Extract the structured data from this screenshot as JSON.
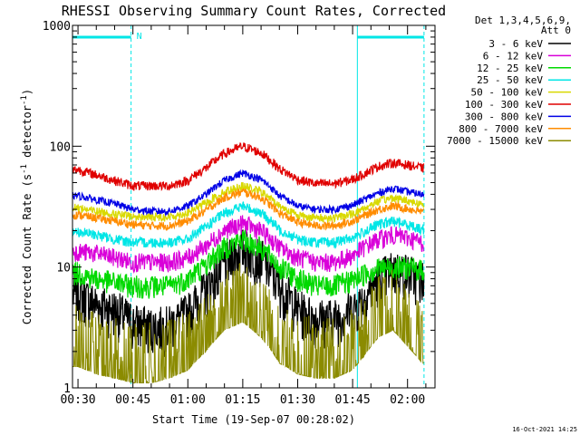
{
  "chart_data": {
    "type": "line",
    "title": "RHESSI Observing Summary Count Rates, Corrected",
    "xlabel": "Start Time (19-Sep-07 00:28:02)",
    "ylabel_prefix": "Corrected Count Rate (s",
    "ylabel_sup1": "-1",
    "ylabel_mid": " detector",
    "ylabel_sup2": "-1",
    "ylabel_suffix": ")",
    "yscale": "log",
    "ylim": [
      1,
      1000
    ],
    "xlim": [
      28.5,
      127.5
    ],
    "x_unit": "minutes after 00:00 UT, 19-Sep-07",
    "x_ticks": [
      {
        "value": 30,
        "label": "00:30"
      },
      {
        "value": 45,
        "label": "00:45"
      },
      {
        "value": 60,
        "label": "01:00"
      },
      {
        "value": 75,
        "label": "01:15"
      },
      {
        "value": 90,
        "label": "01:30"
      },
      {
        "value": 105,
        "label": "01:45"
      },
      {
        "value": 120,
        "label": "02:00"
      }
    ],
    "y_ticks": [
      {
        "value": 1,
        "label": "1"
      },
      {
        "value": 10,
        "label": "10"
      },
      {
        "value": 100,
        "label": "100"
      },
      {
        "value": 1000,
        "label": "1000"
      }
    ],
    "legend_header": [
      "Det 1,3,4,5,6,9,",
      "Att 0"
    ],
    "legend_position": "right",
    "night_marker_label": "N",
    "night_intervals": [
      [
        28.5,
        44.5
      ],
      [
        106.3,
        124.5
      ]
    ],
    "series": [
      {
        "name": "3 - 6 keV",
        "color": "#000000",
        "x": [
          30,
          35,
          40,
          45,
          50,
          55,
          60,
          65,
          70,
          75,
          80,
          85,
          90,
          95,
          100,
          105,
          108,
          112,
          116,
          120,
          124
        ],
        "values": [
          6.0,
          5.0,
          4.5,
          3.5,
          3.2,
          3.3,
          4.2,
          6.5,
          10.5,
          14.5,
          12.0,
          7.0,
          4.5,
          3.8,
          3.8,
          4.5,
          5.5,
          8.0,
          9.5,
          9.0,
          8.0
        ]
      },
      {
        "name": "6 - 12 keV",
        "color": "#d900d9",
        "x": [
          30,
          35,
          40,
          45,
          50,
          55,
          60,
          65,
          70,
          75,
          80,
          85,
          90,
          95,
          100,
          105,
          108,
          112,
          116,
          120,
          124
        ],
        "values": [
          13.5,
          13.0,
          12.0,
          11.0,
          11.0,
          11.0,
          12.0,
          15.0,
          20.0,
          23.0,
          20.0,
          14.5,
          12.0,
          11.0,
          11.0,
          12.5,
          14.5,
          17.0,
          18.5,
          17.5,
          16.0
        ]
      },
      {
        "name": "12 - 25 keV",
        "color": "#00d900",
        "x": [
          30,
          35,
          40,
          45,
          50,
          55,
          60,
          65,
          70,
          75,
          80,
          85,
          90,
          95,
          100,
          105,
          108,
          112,
          116,
          120,
          124
        ],
        "values": [
          9.0,
          8.0,
          7.5,
          7.0,
          7.0,
          7.0,
          8.0,
          10.5,
          14.5,
          17.0,
          14.5,
          10.0,
          8.0,
          7.0,
          7.0,
          7.8,
          8.8,
          9.8,
          10.0,
          10.0,
          9.5
        ]
      },
      {
        "name": "25 - 50 keV",
        "color": "#00e6e6",
        "x": [
          30,
          35,
          40,
          45,
          50,
          55,
          60,
          65,
          70,
          75,
          80,
          85,
          90,
          95,
          100,
          105,
          108,
          112,
          116,
          120,
          124
        ],
        "values": [
          19.5,
          18.5,
          17.0,
          16.0,
          16.0,
          16.0,
          17.0,
          21.5,
          28.0,
          32.0,
          28.0,
          20.5,
          17.0,
          16.0,
          16.0,
          17.5,
          19.5,
          22.5,
          24.0,
          22.5,
          20.5
        ]
      },
      {
        "name": "50 - 100 keV",
        "color": "#d9d900",
        "x": [
          30,
          35,
          40,
          45,
          50,
          55,
          60,
          65,
          70,
          75,
          80,
          85,
          90,
          95,
          100,
          105,
          108,
          112,
          116,
          120,
          124
        ],
        "values": [
          31.0,
          29.0,
          27.5,
          26.0,
          26.0,
          26.0,
          28.0,
          34.0,
          42.0,
          47.0,
          42.0,
          32.0,
          27.0,
          25.5,
          25.5,
          27.5,
          30.5,
          35.0,
          37.5,
          35.5,
          33.0
        ]
      },
      {
        "name": "100 - 300 keV",
        "color": "#e00000",
        "x": [
          30,
          35,
          40,
          45,
          50,
          55,
          60,
          65,
          70,
          75,
          80,
          85,
          90,
          95,
          100,
          105,
          108,
          112,
          116,
          120,
          124
        ],
        "values": [
          64.0,
          58.0,
          52.0,
          47.0,
          47.0,
          47.0,
          52.0,
          66.0,
          87.0,
          100.0,
          88.0,
          65.0,
          53.0,
          49.0,
          49.0,
          53.0,
          59.0,
          68.0,
          73.0,
          70.0,
          66.0
        ]
      },
      {
        "name": "300 - 800 keV",
        "color": "#0000e6",
        "x": [
          30,
          35,
          40,
          45,
          50,
          55,
          60,
          65,
          70,
          75,
          80,
          85,
          90,
          95,
          100,
          105,
          108,
          112,
          116,
          120,
          124
        ],
        "values": [
          39.0,
          36.0,
          33.5,
          30.0,
          29.0,
          29.0,
          32.0,
          40.0,
          52.0,
          60.0,
          53.0,
          39.0,
          32.0,
          30.0,
          30.0,
          32.5,
          36.0,
          41.0,
          45.0,
          42.0,
          40.0
        ]
      },
      {
        "name": "800 - 7000 keV",
        "color": "#ff8c00",
        "x": [
          30,
          35,
          40,
          45,
          50,
          55,
          60,
          65,
          70,
          75,
          80,
          85,
          90,
          95,
          100,
          105,
          108,
          112,
          116,
          120,
          124
        ],
        "values": [
          27.0,
          25.5,
          24.0,
          22.5,
          22.0,
          22.0,
          24.0,
          29.5,
          37.5,
          42.0,
          37.5,
          28.0,
          23.5,
          22.0,
          22.0,
          24.0,
          26.5,
          30.0,
          32.0,
          30.5,
          28.5
        ]
      },
      {
        "name": "7000 - 15000 keV",
        "color": "#8b8b00",
        "x": [
          30,
          35,
          40,
          45,
          50,
          55,
          60,
          65,
          70,
          75,
          80,
          85,
          90,
          95,
          100,
          105,
          108,
          112,
          116,
          120,
          124
        ],
        "values": [
          1.5,
          1.3,
          1.2,
          1.1,
          1.1,
          1.2,
          1.4,
          2.0,
          3.0,
          3.5,
          2.6,
          1.6,
          1.3,
          1.2,
          1.2,
          1.4,
          1.8,
          2.6,
          3.0,
          2.2,
          1.6
        ]
      }
    ]
  },
  "footer": {
    "timestamp": "16-Oct-2021 14:25"
  }
}
